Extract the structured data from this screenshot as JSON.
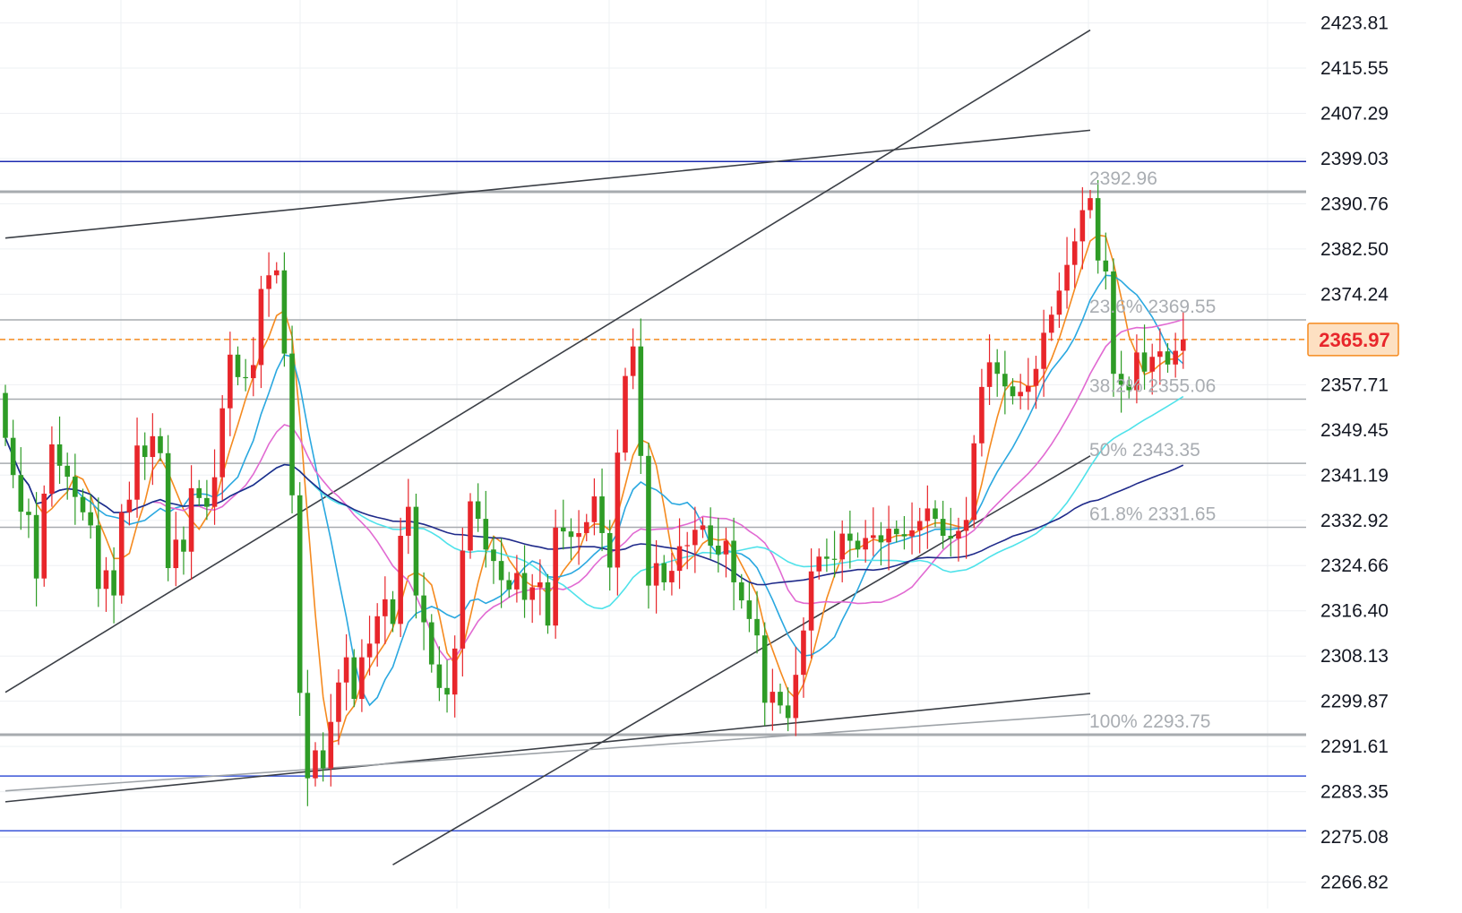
{
  "chart_data": {
    "type": "candlestick",
    "ylim": [
      2262,
      2428
    ],
    "y_axis": {
      "ticks": [
        "2423.81",
        "2415.55",
        "2407.29",
        "2399.03",
        "2390.76",
        "2382.50",
        "2374.24",
        "2365.97",
        "2357.71",
        "2349.45",
        "2341.19",
        "2332.92",
        "2324.66",
        "2316.40",
        "2308.13",
        "2299.87",
        "2291.61",
        "2283.35",
        "2275.08",
        "2266.82"
      ]
    },
    "current_price": {
      "label": "2365.97",
      "value": 2365.97
    },
    "fibonacci": {
      "levels": [
        {
          "label": "2392.96",
          "value": 2392.96
        },
        {
          "label": "23.6% 2369.55",
          "value": 2369.55
        },
        {
          "label": "38.2% 2355.06",
          "value": 2355.06
        },
        {
          "label": "50% 2343.35",
          "value": 2343.35
        },
        {
          "label": "61.8% 2331.65",
          "value": 2331.65
        },
        {
          "label": "100% 2293.75",
          "value": 2293.75
        }
      ]
    },
    "horizontal_levels": [
      {
        "value": 2398.5,
        "color": "#1c2bb0"
      },
      {
        "value": 2286.2,
        "color": "#3a55d8"
      },
      {
        "value": 2276.2,
        "color": "#3a55d8"
      }
    ],
    "trend_lines": [
      {
        "points": [
          [
            0,
            2301.5
          ],
          [
            140,
            2422.5
          ]
        ],
        "color": "#3b3f46"
      },
      {
        "points": [
          [
            0,
            2384.5
          ],
          [
            140,
            2404.2
          ]
        ],
        "color": "#3b3f46"
      },
      {
        "points": [
          [
            50,
            2270
          ],
          [
            140,
            2344.7
          ]
        ],
        "color": "#3b3f46"
      },
      {
        "points": [
          [
            0,
            2281.5
          ],
          [
            140,
            2301.3
          ]
        ],
        "color": "#3b3f46"
      },
      {
        "points": [
          [
            0,
            2283.5
          ],
          [
            140,
            2297.5
          ]
        ],
        "color": "#9ea3a8"
      }
    ],
    "candles": {
      "open": [
        2356.2,
        2348.0,
        2341.2,
        2334.5,
        2333.9,
        2322.3,
        2337.8,
        2346.8,
        2342.9,
        2340.9,
        2337.2,
        2334.4,
        2332.0,
        2320.4,
        2323.8,
        2319.2,
        2334.4,
        2336.7,
        2346.6,
        2344.5,
        2348.3,
        2345.2,
        2324.2,
        2329.4,
        2327.2,
        2338.8,
        2337.0,
        2335.4,
        2340.8,
        2353.4,
        2363.2,
        2359.1,
        2358.9,
        2361.3,
        2375.2,
        2377.7,
        2378.6,
        2363.4,
        2337.5,
        2301.4,
        2285.8,
        2290.9,
        2287.6,
        2296.1,
        2303.3,
        2307.9,
        2300.3,
        2307.9,
        2310.4,
        2315.4,
        2318.5,
        2314.0,
        2330.1,
        2335.4,
        2319.2,
        2314.3,
        2306.6,
        2302.3,
        2301.1,
        2309.5,
        2327.4,
        2336.4,
        2333.2,
        2327.6,
        2325.5,
        2322.0,
        2320.3,
        2323.3,
        2318.4,
        2320.7,
        2321.6,
        2313.7,
        2331.6,
        2330.9,
        2329.9,
        2330.6,
        2332.6,
        2337.3,
        2330.6,
        2324.3,
        2345.3,
        2359.3,
        2364.7,
        2344.7,
        2321.0,
        2325.1,
        2321.6,
        2323.7,
        2328.2,
        2328.4,
        2331.2,
        2332.0,
        2328.3,
        2326.7,
        2329.2,
        2321.6,
        2318.3,
        2314.9,
        2311.9,
        2299.6,
        2301.6,
        2299.1,
        2296.8,
        2304.7,
        2312.8,
        2323.6,
        2326.3,
        2325.9,
        2325.8,
        2330.5,
        2329.2,
        2327.6,
        2329.7,
        2330.2,
        2328.9,
        2331.4,
        2330.4,
        2330.0,
        2331.1,
        2332.8,
        2335.1,
        2333.2,
        2330.1,
        2329.6,
        2331.0,
        2333.0,
        2347.0,
        2357.3,
        2361.8,
        2359.7,
        2357.4,
        2355.6,
        2356.4,
        2357.5,
        2360.6,
        2367.2,
        2370.5,
        2374.9,
        2379.6,
        2383.9,
        2389.6,
        2391.8,
        2380.4,
        2378.4,
        2359.7,
        2357.7,
        2356.7,
        2363.6,
        2360.1,
        2362.8,
        2363.8,
        2361.4,
        2363.9
      ],
      "close": [
        2348.0,
        2341.2,
        2334.5,
        2333.9,
        2322.3,
        2337.8,
        2346.8,
        2342.9,
        2340.9,
        2337.2,
        2334.4,
        2332.0,
        2320.4,
        2323.8,
        2319.2,
        2334.4,
        2336.7,
        2346.6,
        2344.5,
        2348.3,
        2345.2,
        2324.2,
        2329.4,
        2327.2,
        2338.8,
        2337.0,
        2335.4,
        2340.8,
        2353.4,
        2363.2,
        2359.1,
        2358.9,
        2361.3,
        2375.2,
        2377.7,
        2378.6,
        2363.4,
        2337.5,
        2301.4,
        2285.8,
        2290.9,
        2287.6,
        2296.1,
        2303.3,
        2307.9,
        2300.3,
        2307.9,
        2310.4,
        2315.4,
        2318.5,
        2314.0,
        2330.1,
        2335.4,
        2319.2,
        2314.3,
        2306.6,
        2302.3,
        2301.1,
        2309.5,
        2327.4,
        2336.4,
        2333.2,
        2327.6,
        2325.5,
        2322.0,
        2320.3,
        2323.3,
        2318.4,
        2320.7,
        2321.6,
        2313.7,
        2331.6,
        2330.9,
        2329.9,
        2330.6,
        2332.6,
        2337.3,
        2330.6,
        2324.3,
        2345.3,
        2359.3,
        2364.7,
        2344.7,
        2321.0,
        2325.1,
        2321.6,
        2323.7,
        2328.2,
        2328.4,
        2331.2,
        2332.0,
        2328.3,
        2326.7,
        2329.2,
        2321.6,
        2318.3,
        2314.9,
        2311.9,
        2299.6,
        2301.6,
        2299.1,
        2296.8,
        2304.7,
        2312.8,
        2323.6,
        2326.3,
        2325.9,
        2325.8,
        2330.5,
        2329.2,
        2327.6,
        2329.7,
        2330.2,
        2328.9,
        2331.4,
        2330.4,
        2330.0,
        2331.1,
        2332.8,
        2335.1,
        2333.2,
        2330.1,
        2329.6,
        2331.0,
        2333.0,
        2347.0,
        2357.3,
        2361.8,
        2359.7,
        2357.4,
        2355.6,
        2356.4,
        2357.5,
        2360.6,
        2367.2,
        2370.5,
        2374.9,
        2379.6,
        2383.9,
        2389.6,
        2391.8,
        2380.4,
        2378.4,
        2359.7,
        2357.7,
        2356.7,
        2363.6,
        2360.1,
        2362.8,
        2363.8,
        2361.4,
        2363.9,
        2365.97
      ]
    },
    "moving_averages": [
      {
        "period": 5,
        "color": "#f58a1f"
      },
      {
        "period": 10,
        "color": "#2aa8e0"
      },
      {
        "period": 20,
        "color": "#e16ad2"
      },
      {
        "period": 40,
        "color": "#4fe2ea"
      },
      {
        "period": 60,
        "color": "#1f2a8a"
      }
    ],
    "colors": {
      "up": "#e8262b",
      "down": "#2e9c26",
      "grid": "#eef0f3",
      "axis_text": "#131722",
      "fib_text": "#a9adb2"
    }
  }
}
